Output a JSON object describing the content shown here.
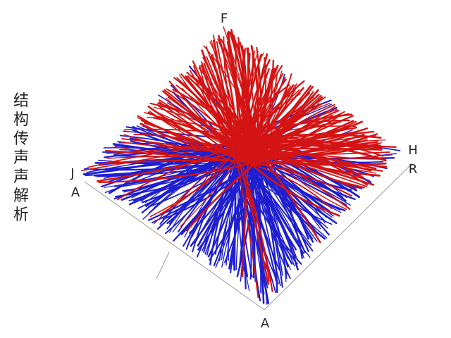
{
  "title": "结构传声声解析",
  "axis_labels": {
    "top": "F",
    "right_upper": "H",
    "right_lower": "R",
    "left_upper": "J",
    "left_lower": "A",
    "bottom": "A"
  }
}
